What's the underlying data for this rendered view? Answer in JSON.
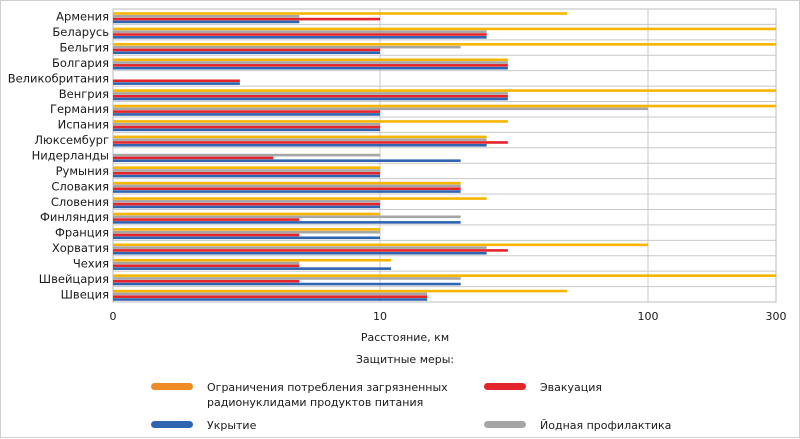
{
  "chart_data": {
    "type": "bar",
    "orientation": "horizontal",
    "x_scale": "log",
    "xlim": [
      1,
      300
    ],
    "x_ticks": [
      "0",
      "10",
      "100",
      "300"
    ],
    "xlabel": "Расстояние, км",
    "legend_title": "Защитные меры:",
    "categories": [
      "Армения",
      "Беларусь",
      "Бельгия",
      "Болгария",
      "Великобритания",
      "Венгрия",
      "Германия",
      "Испания",
      "Люксембург",
      "Нидерланды",
      "Румыния",
      "Словакия",
      "Словения",
      "Финляндия",
      "Франция",
      "Хорватия",
      "Чехия",
      "Швейцария",
      "Швеция"
    ],
    "series": [
      {
        "name": "Ограничения потребления загрязненных радионуклидами продуктов питания",
        "color": "#f7b500",
        "values": [
          50,
          300,
          300,
          30,
          null,
          300,
          300,
          30,
          25,
          null,
          10,
          20,
          25,
          10,
          10,
          100,
          11,
          300,
          50
        ]
      },
      {
        "name": "Йодная профилактика",
        "color": "#a6a6a6",
        "values": [
          5,
          25,
          20,
          30,
          null,
          30,
          100,
          10,
          25,
          10,
          10,
          20,
          10,
          20,
          10,
          25,
          5,
          20,
          15
        ]
      },
      {
        "name": "Эвакуация",
        "color": "#e3242b",
        "values": [
          10,
          25,
          10,
          30,
          3,
          30,
          10,
          10,
          30,
          4,
          10,
          20,
          10,
          5,
          5,
          30,
          5,
          5,
          15
        ]
      },
      {
        "name": "Укрытие",
        "color": "#2f64b0",
        "values": [
          5,
          25,
          10,
          30,
          3,
          30,
          10,
          10,
          25,
          20,
          10,
          20,
          10,
          20,
          10,
          25,
          11,
          20,
          15
        ]
      }
    ],
    "legend": [
      {
        "name_lines": [
          "Ограничения потребления загрязненных",
          "радионуклидами продуктов питания"
        ],
        "color": "#f08a24",
        "position": "left-top"
      },
      {
        "name_lines": [
          "Эвакуация"
        ],
        "color": "#e3242b",
        "position": "right-top"
      },
      {
        "name_lines": [
          "Укрытие"
        ],
        "color": "#2f64b0",
        "position": "left-bottom"
      },
      {
        "name_lines": [
          "Йодная профилактика"
        ],
        "color": "#a6a6a6",
        "position": "right-bottom"
      }
    ],
    "grid": true
  }
}
